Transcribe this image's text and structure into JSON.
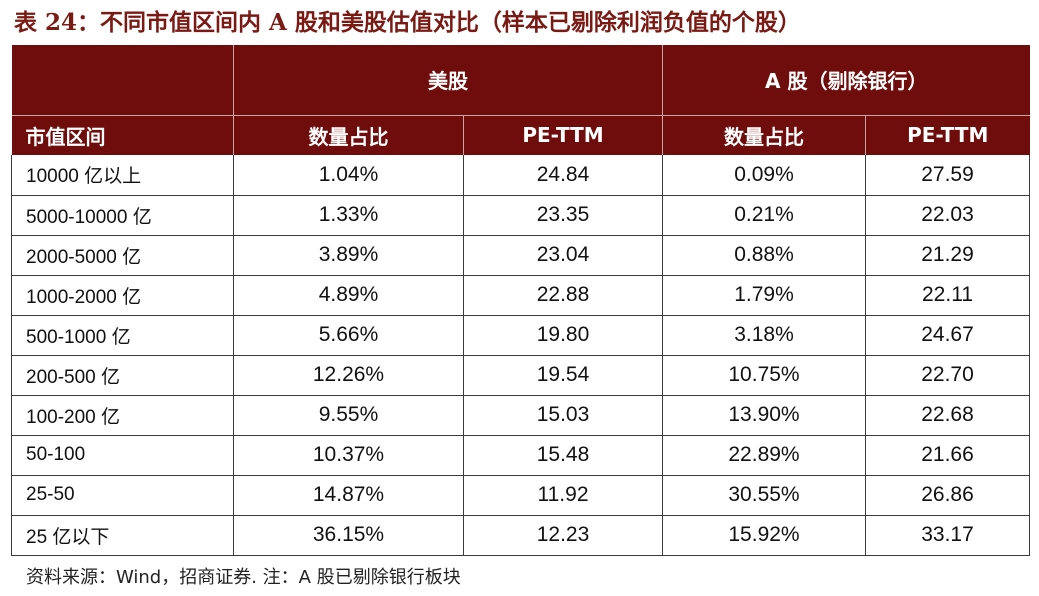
{
  "title": "表 24：不同市值区间内 A 股和美股估值对比（样本已剔除利润负值的个股）",
  "header": {
    "group_us": "美股",
    "group_a": "A 股（剔除银行）",
    "col_range": "市值区间",
    "col_share_us": "数量占比",
    "col_pe_us": "PE-TTM",
    "col_share_a": "数量占比",
    "col_pe_a": "PE-TTM"
  },
  "rows": [
    {
      "range": "10000 亿以上",
      "us_share": "1.04%",
      "us_pe": "24.84",
      "a_share": "0.09%",
      "a_pe": "27.59"
    },
    {
      "range": "5000-10000 亿",
      "us_share": "1.33%",
      "us_pe": "23.35",
      "a_share": "0.21%",
      "a_pe": "22.03"
    },
    {
      "range": "2000-5000 亿",
      "us_share": "3.89%",
      "us_pe": "23.04",
      "a_share": "0.88%",
      "a_pe": "21.29"
    },
    {
      "range": "1000-2000 亿",
      "us_share": "4.89%",
      "us_pe": "22.88",
      "a_share": "1.79%",
      "a_pe": "22.11"
    },
    {
      "range": "500-1000 亿",
      "us_share": "5.66%",
      "us_pe": "19.80",
      "a_share": "3.18%",
      "a_pe": "24.67"
    },
    {
      "range": "200-500 亿",
      "us_share": "12.26%",
      "us_pe": "19.54",
      "a_share": "10.75%",
      "a_pe": "22.70"
    },
    {
      "range": "100-200 亿",
      "us_share": "9.55%",
      "us_pe": "15.03",
      "a_share": "13.90%",
      "a_pe": "22.68"
    },
    {
      "range": "50-100",
      "us_share": "10.37%",
      "us_pe": "15.48",
      "a_share": "22.89%",
      "a_pe": "21.66"
    },
    {
      "range": "25-50",
      "us_share": "14.87%",
      "us_pe": "11.92",
      "a_share": "30.55%",
      "a_pe": "26.86"
    },
    {
      "range": "25 亿以下",
      "us_share": "36.15%",
      "us_pe": "12.23",
      "a_share": "15.92%",
      "a_pe": "33.17"
    }
  ],
  "source_note": "资料来源：Wind，招商证券. 注：A 股已剔除银行板块",
  "colors": {
    "header_bg": "#6e0d0b",
    "title": "#7a1a14"
  }
}
